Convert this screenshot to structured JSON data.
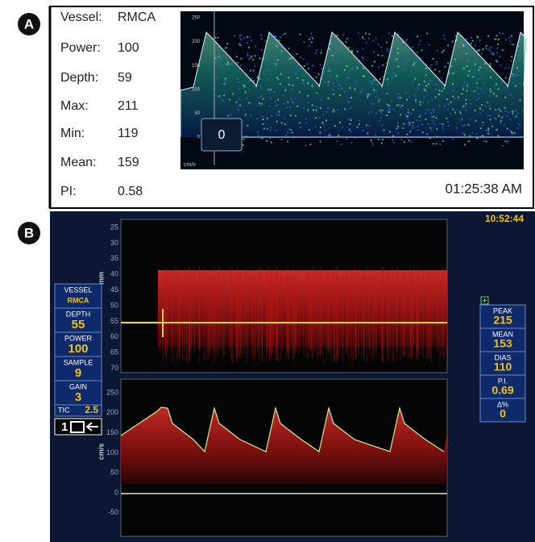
{
  "panel_a": {
    "label": "A",
    "fields": [
      {
        "name": "Vessel:",
        "value": "RMCA"
      },
      {
        "name": "Power:",
        "value": 100
      },
      {
        "name": "Depth:",
        "value": 59
      },
      {
        "name": "Max:",
        "value": 211
      },
      {
        "name": "Min:",
        "value": 119
      },
      {
        "name": "Mean:",
        "value": 159
      },
      {
        "name": "PI:",
        "value": 0.58
      }
    ],
    "spectrum": {
      "yticks": [
        250,
        200,
        150,
        100,
        50,
        0
      ],
      "unit": "cm/s",
      "gate": 0
    },
    "time": "01:25:38 AM"
  },
  "panel_b": {
    "label": "B",
    "time": "10:52:44",
    "left_panel": [
      {
        "name": "VESSEL",
        "value": "RMCA"
      },
      {
        "name": "DEPTH",
        "value": 55
      },
      {
        "name": "POWER",
        "value": 100
      },
      {
        "name": "SAMPLE",
        "value": 9
      },
      {
        "name": "GAIN",
        "value": 3
      }
    ],
    "tic": {
      "name": "TIC",
      "value": 2.5
    },
    "probe": "1",
    "right_panel": [
      {
        "name": "PEAK",
        "value": 215
      },
      {
        "name": "MEAN",
        "value": 153
      },
      {
        "name": "DIAS",
        "value": 110
      },
      {
        "name": "P.I.",
        "value": 0.69
      },
      {
        "name": "Δ%",
        "value": 0
      }
    ],
    "mmode": {
      "unit": "mm",
      "ticks": [
        25,
        30,
        35,
        40,
        45,
        50,
        55,
        60,
        65,
        70
      ]
    },
    "spectrum": {
      "unit": "cm/s",
      "ticks": [
        250,
        200,
        150,
        100,
        50,
        0,
        -50
      ]
    }
  }
}
